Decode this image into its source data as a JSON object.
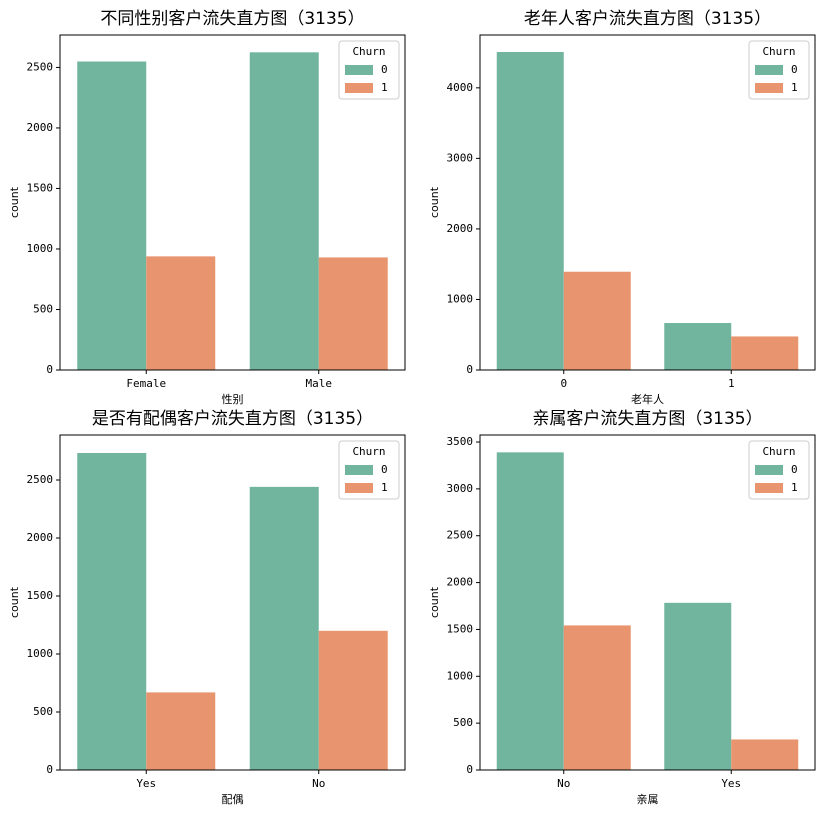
{
  "chart_data": [
    {
      "type": "bar",
      "title": "不同性别客户流失直方图（3135）",
      "xlabel": "性别",
      "ylabel": "count",
      "categories": [
        "Female",
        "Male"
      ],
      "series": [
        {
          "name": "0",
          "color": "#72b59f",
          "values": [
            2549,
            2625
          ]
        },
        {
          "name": "1",
          "color": "#e8956f",
          "values": [
            939,
            930
          ]
        }
      ],
      "ylim": [
        0,
        2768
      ],
      "yticks": [
        0,
        500,
        1000,
        1500,
        2000,
        2500
      ],
      "legend_title": "Churn",
      "legend": "upper right"
    },
    {
      "type": "bar",
      "title": "老年人客户流失直方图（3135）",
      "xlabel": "老年人",
      "ylabel": "count",
      "categories": [
        "0",
        "1"
      ],
      "series": [
        {
          "name": "0",
          "color": "#72b59f",
          "values": [
            4508,
            666
          ]
        },
        {
          "name": "1",
          "color": "#e8956f",
          "values": [
            1393,
            476
          ]
        }
      ],
      "ylim": [
        0,
        4749
      ],
      "yticks": [
        0,
        1000,
        2000,
        3000,
        4000
      ],
      "legend_title": "Churn",
      "legend": "upper right"
    },
    {
      "type": "bar",
      "title": "是否有配偶客户流失直方图（3135）",
      "xlabel": "配偶",
      "ylabel": "count",
      "categories": [
        "Yes",
        "No"
      ],
      "series": [
        {
          "name": "0",
          "color": "#72b59f",
          "values": [
            2733,
            2441
          ]
        },
        {
          "name": "1",
          "color": "#e8956f",
          "values": [
            669,
            1200
          ]
        }
      ],
      "ylim": [
        0,
        2888
      ],
      "yticks": [
        0,
        500,
        1000,
        1500,
        2000,
        2500
      ],
      "legend_title": "Churn",
      "legend": "upper right"
    },
    {
      "type": "bar",
      "title": "亲属客户流失直方图（3135）",
      "xlabel": "亲属",
      "ylabel": "count",
      "categories": [
        "No",
        "Yes"
      ],
      "series": [
        {
          "name": "0",
          "color": "#72b59f",
          "values": [
            3390,
            1784
          ]
        },
        {
          "name": "1",
          "color": "#e8956f",
          "values": [
            1543,
            326
          ]
        }
      ],
      "ylim": [
        0,
        3575
      ],
      "yticks": [
        0,
        500,
        1000,
        1500,
        2000,
        2500,
        3000,
        3500
      ],
      "legend_title": "Churn",
      "legend": "upper right"
    }
  ]
}
